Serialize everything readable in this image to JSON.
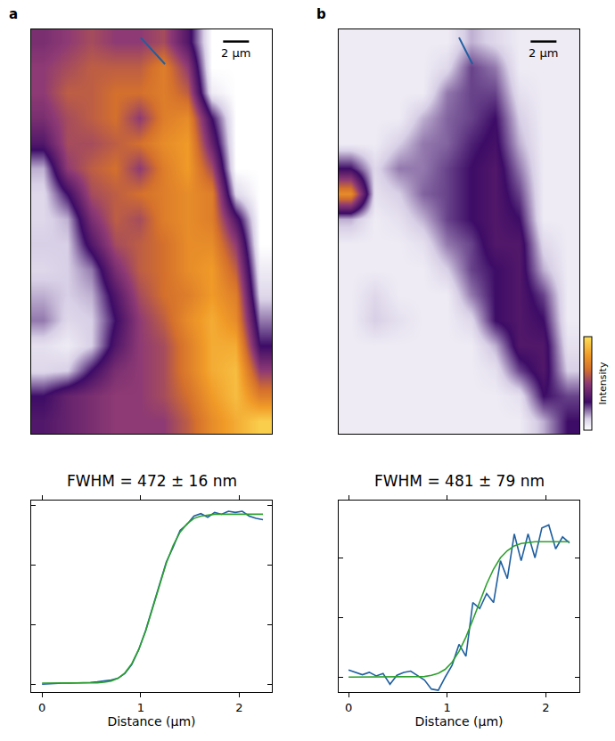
{
  "chart_data": [
    {
      "type": "heatmap",
      "panel": "a",
      "xlim": [
        0,
        18.6
      ],
      "ylim": [
        31.3,
        0
      ],
      "tick_labels": false,
      "zlim": [
        0,
        1
      ],
      "scale_bar": {
        "length": 2,
        "label": "2 µm"
      },
      "profile_line": {
        "x": [
          8.46,
          10.34
        ],
        "y": [
          0.63,
          2.69
        ]
      },
      "cells": [
        [
          0.45,
          0.5,
          0.55,
          0.5,
          0.5,
          0.55,
          0.35,
          0,
          0,
          0
        ],
        [
          0.5,
          0.55,
          0.6,
          0.6,
          0.6,
          0.7,
          0.5,
          0,
          0,
          0
        ],
        [
          0.5,
          0.6,
          0.6,
          0.65,
          0.65,
          0.7,
          0.6,
          0.05,
          0,
          0
        ],
        [
          0.45,
          0.55,
          0.6,
          0.65,
          0.5,
          0.7,
          0.75,
          0.3,
          0,
          0
        ],
        [
          0.35,
          0.55,
          0.55,
          0.6,
          0.65,
          0.75,
          0.8,
          0.4,
          0,
          0
        ],
        [
          0.15,
          0.5,
          0.6,
          0.65,
          0.5,
          0.7,
          0.8,
          0.55,
          0,
          0
        ],
        [
          0.1,
          0.3,
          0.55,
          0.6,
          0.65,
          0.7,
          0.75,
          0.7,
          0.1,
          0
        ],
        [
          0.1,
          0.15,
          0.45,
          0.6,
          0.55,
          0.7,
          0.75,
          0.7,
          0.35,
          0
        ],
        [
          0.12,
          0.12,
          0.35,
          0.55,
          0.6,
          0.65,
          0.75,
          0.75,
          0.5,
          0
        ],
        [
          0.1,
          0.12,
          0.2,
          0.45,
          0.6,
          0.65,
          0.75,
          0.8,
          0.6,
          0.05
        ],
        [
          0.15,
          0.12,
          0.15,
          0.35,
          0.55,
          0.65,
          0.7,
          0.8,
          0.7,
          0.1
        ],
        [
          0.2,
          0.1,
          0.12,
          0.3,
          0.5,
          0.6,
          0.75,
          0.85,
          0.75,
          0.2
        ],
        [
          0.08,
          0.05,
          0.12,
          0.35,
          0.5,
          0.55,
          0.7,
          0.85,
          0.85,
          0.3
        ],
        [
          0.1,
          0.12,
          0.3,
          0.45,
          0.5,
          0.55,
          0.7,
          0.85,
          0.9,
          0.5
        ],
        [
          0.3,
          0.4,
          0.45,
          0.5,
          0.5,
          0.55,
          0.65,
          0.8,
          0.9,
          0.7
        ],
        [
          0.35,
          0.4,
          0.45,
          0.5,
          0.5,
          0.5,
          0.6,
          0.75,
          0.85,
          0.95
        ]
      ]
    },
    {
      "type": "heatmap",
      "panel": "b",
      "xlim": [
        0,
        18.6
      ],
      "ylim": [
        31.3,
        0
      ],
      "tick_labels": false,
      "zlim": [
        0,
        1
      ],
      "colorbar_title": "Intensity",
      "scale_bar": {
        "length": 2,
        "label": "2 µm"
      },
      "profile_line": {
        "x": [
          9.3,
          10.34
        ],
        "y": [
          0.63,
          2.69
        ]
      },
      "cells": [
        [
          0.05,
          0.05,
          0.05,
          0.05,
          0.05,
          0.15,
          0.1,
          0.05,
          0.05,
          0.05
        ],
        [
          0.05,
          0.05,
          0.05,
          0.05,
          0.1,
          0.25,
          0.2,
          0.05,
          0.05,
          0.05
        ],
        [
          0.05,
          0.05,
          0.05,
          0.05,
          0.2,
          0.25,
          0.25,
          0.08,
          0.05,
          0.05
        ],
        [
          0.05,
          0.05,
          0.05,
          0.15,
          0.22,
          0.25,
          0.3,
          0.12,
          0.05,
          0.05
        ],
        [
          0.05,
          0.05,
          0.12,
          0.2,
          0.22,
          0.28,
          0.32,
          0.15,
          0.05,
          0.05
        ],
        [
          0.3,
          0.1,
          0.2,
          0.2,
          0.25,
          0.3,
          0.35,
          0.2,
          0.05,
          0.05
        ],
        [
          0.75,
          0.08,
          0.12,
          0.22,
          0.25,
          0.3,
          0.35,
          0.25,
          0.05,
          0.05
        ],
        [
          0.15,
          0.05,
          0.08,
          0.15,
          0.25,
          0.3,
          0.35,
          0.3,
          0.05,
          0.05
        ],
        [
          0.05,
          0.05,
          0.05,
          0.08,
          0.2,
          0.25,
          0.35,
          0.35,
          0.1,
          0.05
        ],
        [
          0.05,
          0.05,
          0.05,
          0.05,
          0.12,
          0.25,
          0.3,
          0.35,
          0.15,
          0.05
        ],
        [
          0.05,
          0.1,
          0.05,
          0.05,
          0.05,
          0.2,
          0.3,
          0.35,
          0.25,
          0.05
        ],
        [
          0.05,
          0.12,
          0.08,
          0.05,
          0.05,
          0.1,
          0.3,
          0.35,
          0.3,
          0.05
        ],
        [
          0.05,
          0.05,
          0.05,
          0.05,
          0.05,
          0.05,
          0.15,
          0.35,
          0.35,
          0.08
        ],
        [
          0.05,
          0.05,
          0.05,
          0.05,
          0.05,
          0.05,
          0.08,
          0.25,
          0.35,
          0.12
        ],
        [
          0.05,
          0.05,
          0.05,
          0.05,
          0.05,
          0.05,
          0.05,
          0.08,
          0.3,
          0.25
        ],
        [
          0.05,
          0.05,
          0.05,
          0.05,
          0.05,
          0.05,
          0.05,
          0.05,
          0.15,
          0.3
        ]
      ]
    },
    {
      "type": "line",
      "title": "FWHM = 472 ± 16 nm",
      "x_label": "Distance (µm)",
      "xlim": [
        -0.11,
        2.33
      ],
      "ylim": [
        -0.13,
        3.08
      ],
      "xticks": [
        0,
        1,
        2
      ],
      "yticks": [
        0,
        1,
        2,
        3
      ],
      "tick_labels": "x",
      "grid": false,
      "x": [
        0,
        0.07,
        0.14,
        0.21,
        0.28,
        0.35,
        0.42,
        0.49,
        0.56,
        0.63,
        0.7,
        0.77,
        0.84,
        0.91,
        0.98,
        1.05,
        1.12,
        1.19,
        1.26,
        1.33,
        1.4,
        1.47,
        1.54,
        1.61,
        1.68,
        1.75,
        1.82,
        1.89,
        1.96,
        2.03,
        2.1,
        2.17,
        2.24
      ],
      "series": [
        {
          "color": "#1f5fa0",
          "values": [
            0.0,
            0.01,
            0.01,
            0.02,
            0.02,
            0.02,
            0.03,
            0.03,
            0.04,
            0.05,
            0.07,
            0.1,
            0.18,
            0.33,
            0.58,
            0.9,
            1.28,
            1.68,
            2.05,
            2.3,
            2.58,
            2.68,
            2.82,
            2.86,
            2.8,
            2.88,
            2.85,
            2.9,
            2.88,
            2.9,
            2.82,
            2.78,
            2.76
          ]
        },
        {
          "color": "#2ca02c",
          "values": [
            0.02,
            0.02,
            0.02,
            0.02,
            0.02,
            0.02,
            0.02,
            0.02,
            0.025,
            0.033,
            0.055,
            0.1,
            0.19,
            0.345,
            0.58,
            0.89,
            1.27,
            1.66,
            2.03,
            2.33,
            2.55,
            2.69,
            2.78,
            2.82,
            2.84,
            2.85,
            2.85,
            2.85,
            2.85,
            2.85,
            2.85,
            2.85,
            2.85
          ]
        }
      ]
    },
    {
      "type": "line",
      "title": "FWHM = 481 ± 79 nm",
      "x_label": "Distance (µm)",
      "xlim": [
        -0.1,
        2.34
      ],
      "ylim": [
        -0.25,
        2.96
      ],
      "xticks": [
        0,
        1,
        2
      ],
      "yticks": [
        0,
        1,
        2
      ],
      "tick_labels": "x",
      "grid": false,
      "x": [
        0,
        0.07,
        0.14,
        0.21,
        0.28,
        0.35,
        0.42,
        0.49,
        0.56,
        0.63,
        0.7,
        0.77,
        0.84,
        0.91,
        0.98,
        1.05,
        1.12,
        1.19,
        1.26,
        1.33,
        1.4,
        1.47,
        1.54,
        1.61,
        1.68,
        1.75,
        1.82,
        1.89,
        1.96,
        2.03,
        2.1,
        2.17,
        2.24
      ],
      "series": [
        {
          "color": "#1f5fa0",
          "values": [
            0.12,
            0.08,
            0.04,
            0.08,
            0.02,
            0.06,
            -0.12,
            0.03,
            0.08,
            0.1,
            0.02,
            -0.05,
            -0.2,
            -0.22,
            0.0,
            0.2,
            0.55,
            0.35,
            1.25,
            1.15,
            1.4,
            1.25,
            1.95,
            1.65,
            2.4,
            1.95,
            2.4,
            2.0,
            2.5,
            2.55,
            2.15,
            2.35,
            2.25
          ]
        },
        {
          "color": "#2ca02c",
          "values": [
            0,
            0,
            0,
            0,
            0,
            0,
            0,
            0,
            0,
            0,
            0.004,
            0.01,
            0.03,
            0.064,
            0.13,
            0.25,
            0.43,
            0.67,
            0.96,
            1.27,
            1.56,
            1.81,
            2.0,
            2.12,
            2.2,
            2.24,
            2.26,
            2.27,
            2.27,
            2.27,
            2.27,
            2.27,
            2.27
          ]
        }
      ]
    }
  ]
}
